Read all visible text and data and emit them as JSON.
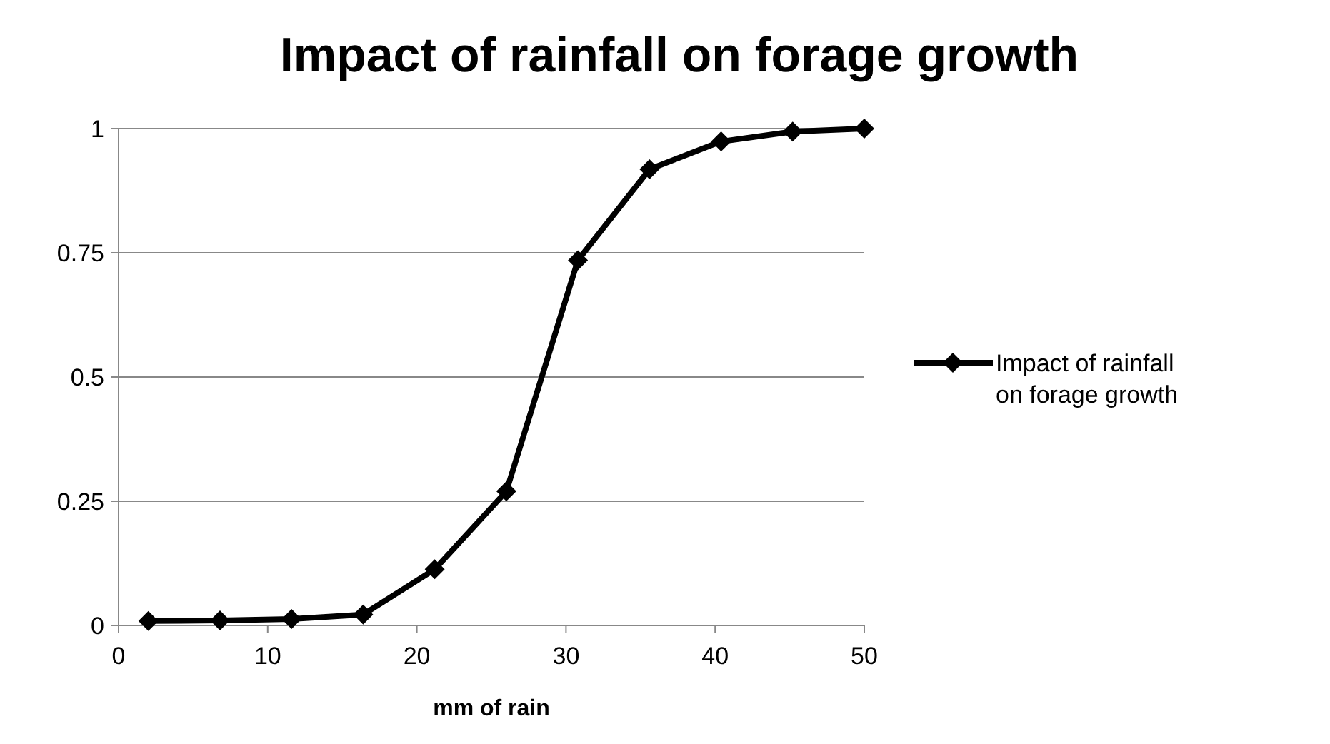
{
  "chart_data": {
    "type": "line",
    "title": "Impact of rainfall on forage growth",
    "xlabel": "mm of rain",
    "x": [
      2,
      6.8,
      11.6,
      16.4,
      21.2,
      26,
      30.8,
      35.6,
      40.4,
      45.2,
      50
    ],
    "series": [
      {
        "name": "Impact of rainfall on forage growth",
        "color": "#000000",
        "values": [
          0.009,
          0.01,
          0.013,
          0.022,
          0.113,
          0.27,
          0.735,
          0.918,
          0.974,
          0.994,
          1
        ]
      }
    ],
    "xlim": [
      0,
      50
    ],
    "xticks": [
      0,
      10,
      20,
      30,
      40,
      50
    ],
    "ylim": [
      0,
      1
    ],
    "yticks": [
      0,
      0.25,
      0.5,
      0.75,
      1
    ],
    "grid": "y",
    "legend": "right",
    "marker": "diamond",
    "line_style": "solid"
  }
}
